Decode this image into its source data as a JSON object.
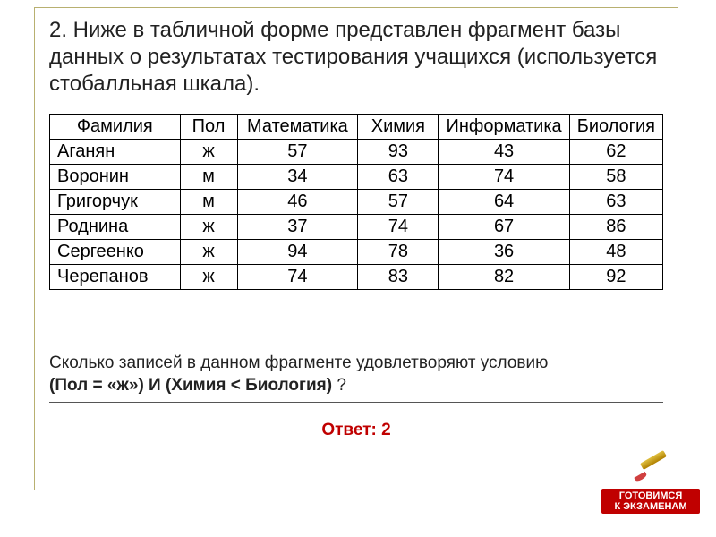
{
  "title": "2. Ниже в табличной форме представлен фрагмент базы данных о результатах тестирования учащихся (используется стобалльная шкала).",
  "table": {
    "columns": [
      "Фамилия",
      "Пол",
      "Математика",
      "Химия",
      "Информатика",
      "Биология"
    ],
    "rows": [
      [
        "Аганян",
        "ж",
        "57",
        "93",
        "43",
        "62"
      ],
      [
        "Воронин",
        "м",
        "34",
        "63",
        "74",
        "58"
      ],
      [
        "Григорчук",
        "м",
        "46",
        "57",
        "64",
        "63"
      ],
      [
        "Роднина",
        "ж",
        "37",
        "74",
        "67",
        "86"
      ],
      [
        "Сергеенко",
        "ж",
        "94",
        "78",
        "36",
        "48"
      ],
      [
        "Черепанов",
        "ж",
        "74",
        "83",
        "82",
        "92"
      ]
    ],
    "col_widths": [
      "23%",
      "10%",
      "20%",
      "14%",
      "21%",
      "16%"
    ]
  },
  "question": {
    "lead": "Сколько записей в данном фрагменте удовлетворяют условию",
    "condition": "(Пол = «ж») И (Химия  <  Биология)",
    "tail": " ?"
  },
  "answer": "Ответ: 2",
  "badge": {
    "line1": "ГОТОВИМСЯ",
    "line2": "К ЭКЗАМЕНАМ"
  },
  "colors": {
    "frame_border": "#b8b070",
    "answer_color": "#c00000",
    "border": "#000000",
    "text": "#222222"
  }
}
